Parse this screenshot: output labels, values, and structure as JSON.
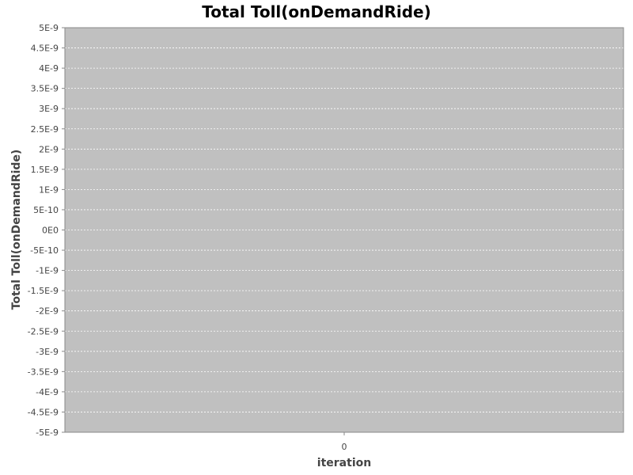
{
  "chart_data": {
    "type": "line",
    "title": "Total Toll(onDemandRide)",
    "xlabel": "iteration",
    "ylabel": "Total Toll(onDemandRide)",
    "categories": [
      "0"
    ],
    "series": [],
    "ylim": [
      -5e-09,
      5e-09
    ],
    "y_ticks": [
      "5E-9",
      "4.5E-9",
      "4E-9",
      "3.5E-9",
      "3E-9",
      "2.5E-9",
      "2E-9",
      "1.5E-9",
      "1E-9",
      "5E-10",
      "0E0",
      "-5E-10",
      "-1E-9",
      "-1.5E-9",
      "-2E-9",
      "-2.5E-9",
      "-3E-9",
      "-3.5E-9",
      "-4E-9",
      "-4.5E-9",
      "-5E-9"
    ],
    "grid": true,
    "legend": "none",
    "colors": {
      "plot_background": "#c0c0c0",
      "gridline": "#ffffff",
      "axis": "#888888",
      "tick_text": "#444444"
    }
  }
}
